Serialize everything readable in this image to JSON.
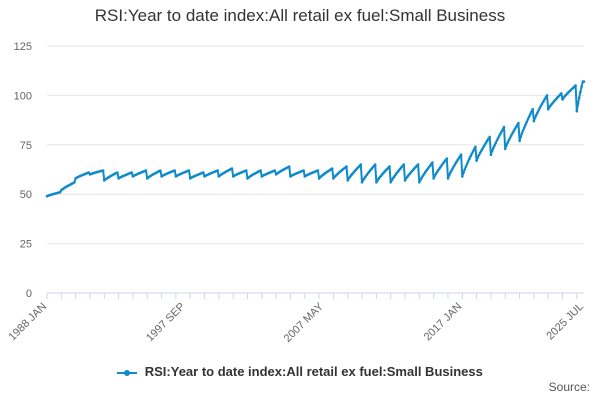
{
  "page": {
    "source_label": "Source:"
  },
  "colors": {
    "series": "#0F8BCA",
    "grid": "#e6e6e6",
    "axis": "#ccd6eb"
  },
  "chart_data": {
    "type": "line",
    "title": "RSI:Year to date index:All retail ex fuel:Small Business",
    "xlabel": "",
    "ylabel": "",
    "ylim": [
      0,
      125
    ],
    "yticks": [
      0,
      25,
      50,
      75,
      100,
      125
    ],
    "xlim": [
      "1988-01",
      "2025-07"
    ],
    "xticks": [
      "1988 JAN",
      "1997 SEP",
      "2007 MAY",
      "2017 JAN",
      "2025 JUL"
    ],
    "grid": true,
    "legend_position": "bottom",
    "series": [
      {
        "name": "RSI:Year to date index:All retail ex fuel:Small Business",
        "x": [
          "1988-01",
          "1989-01",
          "1990-01",
          "1991-01",
          "1992-01",
          "1993-01",
          "1994-01",
          "1995-01",
          "1996-01",
          "1997-01",
          "1998-01",
          "1999-01",
          "2000-01",
          "2001-01",
          "2002-01",
          "2003-01",
          "2004-01",
          "2005-01",
          "2006-01",
          "2007-01",
          "2008-01",
          "2009-01",
          "2010-01",
          "2011-01",
          "2012-01",
          "2013-01",
          "2014-01",
          "2015-01",
          "2016-01",
          "2017-01",
          "2018-01",
          "2019-01",
          "2020-01",
          "2021-01",
          "2022-01",
          "2023-01",
          "2024-01",
          "2025-01",
          "2025-07"
        ],
        "values": [
          49,
          52,
          58,
          60,
          57,
          58,
          59,
          58,
          59,
          59,
          58,
          59,
          59,
          59,
          58,
          59,
          60,
          59,
          59,
          58,
          58,
          57,
          56,
          56,
          56,
          57,
          56,
          58,
          58,
          59,
          67,
          70,
          73,
          77,
          87,
          93,
          98,
          92,
          107
        ],
        "year_end_values": [
          51,
          56,
          61,
          62,
          61,
          61,
          62,
          62,
          62,
          62,
          61,
          62,
          63,
          62,
          62,
          62,
          64,
          62,
          62,
          63,
          64,
          65,
          65,
          64,
          65,
          65,
          66,
          68,
          70,
          74,
          79,
          84,
          86,
          93,
          100,
          101,
          105,
          107
        ]
      }
    ]
  }
}
